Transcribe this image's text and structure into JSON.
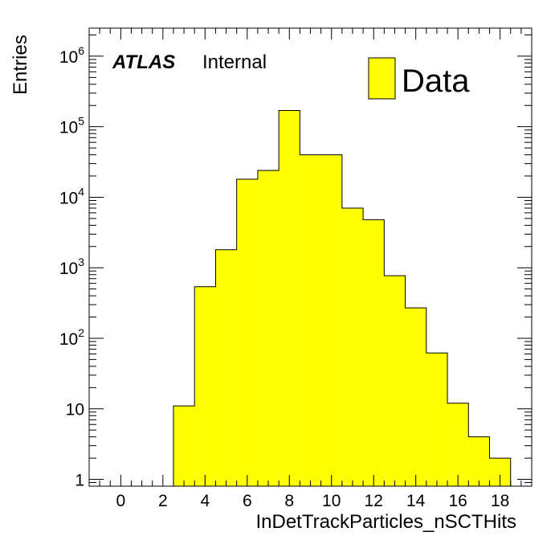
{
  "chart_data": {
    "type": "bar",
    "subtype": "histogram",
    "xlabel": "InDetTrackParticles_nSCTHits",
    "ylabel": "Entries",
    "yscale": "log",
    "xlim": [
      -1.5,
      19.5
    ],
    "ylim": [
      0.8,
      2500000
    ],
    "x_ticks": [
      0,
      2,
      4,
      6,
      8,
      10,
      12,
      14,
      16,
      18
    ],
    "y_ticks": [
      {
        "value": 1,
        "base": "1",
        "exp": ""
      },
      {
        "value": 10,
        "base": "10",
        "exp": ""
      },
      {
        "value": 100,
        "base": "10",
        "exp": "2"
      },
      {
        "value": 1000,
        "base": "10",
        "exp": "3"
      },
      {
        "value": 10000,
        "base": "10",
        "exp": "4"
      },
      {
        "value": 100000,
        "base": "10",
        "exp": "5"
      },
      {
        "value": 1000000,
        "base": "10",
        "exp": "6"
      }
    ],
    "bins": [
      {
        "low": 2.5,
        "high": 3.5,
        "value": 11
      },
      {
        "low": 3.5,
        "high": 4.5,
        "value": 540
      },
      {
        "low": 4.5,
        "high": 5.5,
        "value": 1800
      },
      {
        "low": 5.5,
        "high": 6.5,
        "value": 18000
      },
      {
        "low": 6.5,
        "high": 7.5,
        "value": 24000
      },
      {
        "low": 7.5,
        "high": 8.5,
        "value": 170000
      },
      {
        "low": 8.5,
        "high": 10.5,
        "value": 40000
      },
      {
        "low": 10.5,
        "high": 11.5,
        "value": 7000
      },
      {
        "low": 11.5,
        "high": 12.5,
        "value": 4800
      },
      {
        "low": 12.5,
        "high": 13.5,
        "value": 770
      },
      {
        "low": 13.5,
        "high": 14.5,
        "value": 270
      },
      {
        "low": 14.5,
        "high": 15.5,
        "value": 62
      },
      {
        "low": 15.5,
        "high": 16.5,
        "value": 12
      },
      {
        "low": 16.5,
        "high": 17.5,
        "value": 4
      },
      {
        "low": 17.5,
        "high": 18.5,
        "value": 2
      }
    ],
    "series": [
      {
        "name": "Data",
        "color": "#ffff00"
      }
    ],
    "legend": {
      "entry": "Data",
      "placement": "top-right"
    },
    "annotation": {
      "atlas": "ATLAS",
      "label": "Internal"
    }
  }
}
